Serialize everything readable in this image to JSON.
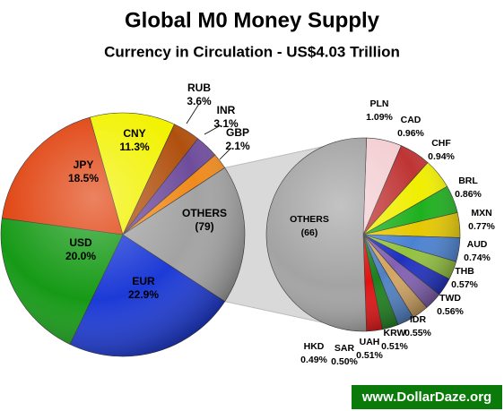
{
  "chart_data": [
    {
      "type": "pie",
      "title": "Global M0 Money Supply",
      "subtitle": "Currency in Circulation - US$4.03 Trillion",
      "watermark": "www.DollarDaze.org",
      "categories": [
        "EUR",
        "USD",
        "JPY",
        "CNY",
        "RUB",
        "INR",
        "GBP",
        "OTHERS"
      ],
      "values": [
        22.9,
        20.0,
        18.5,
        11.3,
        3.6,
        3.1,
        2.1,
        18.5
      ],
      "value_labels": [
        "22.9%",
        "20.0%",
        "18.5%",
        "11.3%",
        "3.6%",
        "3.1%",
        "2.1%",
        null
      ],
      "others_label": "(79)",
      "colors": [
        "#1c3ad6",
        "#169a16",
        "#e0400c",
        "#f2f200",
        "#b0500e",
        "#6e4c9c",
        "#f08a1c",
        "#a3a3a3"
      ]
    },
    {
      "type": "pie",
      "categories": [
        "PLN",
        "CAD",
        "CHF",
        "BRL",
        "MXN",
        "AUD",
        "THB",
        "TWD",
        "IDR",
        "KRW",
        "UAH",
        "SAR",
        "HKD",
        "OTHERS"
      ],
      "values": [
        1.09,
        0.96,
        0.94,
        0.86,
        0.77,
        0.74,
        0.57,
        0.56,
        0.55,
        0.51,
        0.51,
        0.5,
        0.49,
        9.45
      ],
      "value_labels": [
        "1.09%",
        "0.96%",
        "0.94%",
        "0.86%",
        "0.77%",
        "0.74%",
        "0.57%",
        "0.56%",
        "0.55%",
        "0.51%",
        "0.51%",
        "0.50%",
        "0.49%",
        null
      ],
      "others_label": "(66)",
      "colors": [
        "#f3cfd3",
        "#bf3434",
        "#f0ee00",
        "#1eb01e",
        "#e6c800",
        "#4a82d2",
        "#92c23e",
        "#1e30c2",
        "#8260b2",
        "#d2a462",
        "#5080c4",
        "#1e801e",
        "#e01212",
        "#a3a3a3"
      ]
    }
  ]
}
